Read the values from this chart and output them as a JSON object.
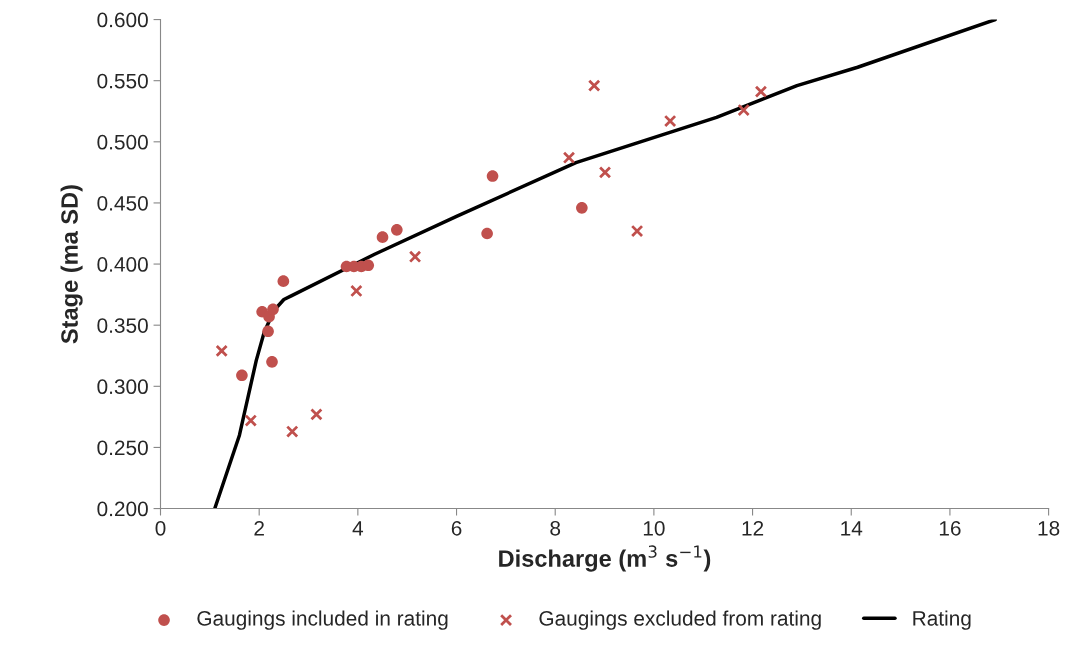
{
  "chart_data": {
    "type": "scatter",
    "xlabel": "Discharge (m$^{3}$ s$^{−1}$)",
    "ylabel": "Stage (ma SD)",
    "xlim": [
      0,
      18
    ],
    "xticks": [
      0,
      2,
      4,
      6,
      8,
      10,
      12,
      14,
      16,
      18
    ],
    "ylim": [
      0.2,
      0.6
    ],
    "yticks": [
      {
        "value": 0.2,
        "label": "0.200"
      },
      {
        "value": 0.25,
        "label": "0.250"
      },
      {
        "value": 0.3,
        "label": "0.300"
      },
      {
        "value": 0.35,
        "label": "0.350"
      },
      {
        "value": 0.4,
        "label": "0.400"
      },
      {
        "value": 0.45,
        "label": "0.450"
      },
      {
        "value": 0.5,
        "label": "0.500"
      },
      {
        "value": 0.55,
        "label": "0.550"
      },
      {
        "value": 0.6,
        "label": "0.600"
      }
    ],
    "grid": false,
    "legend": "bottom",
    "series": [
      {
        "name": "Gaugings included in rating",
        "marker": "circle",
        "color": "#c0504d",
        "x": [
          1.65,
          2.06,
          2.18,
          2.2,
          2.28,
          2.26,
          2.49,
          3.77,
          3.92,
          4.07,
          4.21,
          4.5,
          4.79,
          6.62,
          6.73,
          8.54
        ],
        "values": [
          0.309,
          0.361,
          0.345,
          0.357,
          0.363,
          0.32,
          0.386,
          0.398,
          0.398,
          0.398,
          0.399,
          0.422,
          0.428,
          0.425,
          0.472,
          0.446
        ]
      },
      {
        "name": "Gaugings excluded from rating",
        "marker": "cross",
        "color": "#c0504d",
        "x": [
          1.24,
          1.83,
          2.67,
          3.16,
          3.97,
          5.16,
          8.28,
          8.79,
          9.01,
          9.66,
          10.33,
          11.82,
          12.17
        ],
        "values": [
          0.329,
          0.272,
          0.263,
          0.277,
          0.378,
          0.406,
          0.487,
          0.546,
          0.475,
          0.427,
          0.517,
          0.526,
          0.541
        ]
      },
      {
        "name": "Rating",
        "type": "line",
        "marker": "none",
        "line_style": "solid",
        "color": "#000000",
        "x": [
          1.1,
          1.6,
          1.94,
          2.1,
          2.3,
          2.5,
          2.65,
          4.34,
          6.0,
          8.42,
          11.27,
          12.9,
          14.13,
          16.92
        ],
        "values": [
          0.2,
          0.26,
          0.321,
          0.344,
          0.362,
          0.371,
          0.374,
          0.408,
          0.439,
          0.483,
          0.52,
          0.546,
          0.561,
          0.6
        ]
      }
    ]
  }
}
